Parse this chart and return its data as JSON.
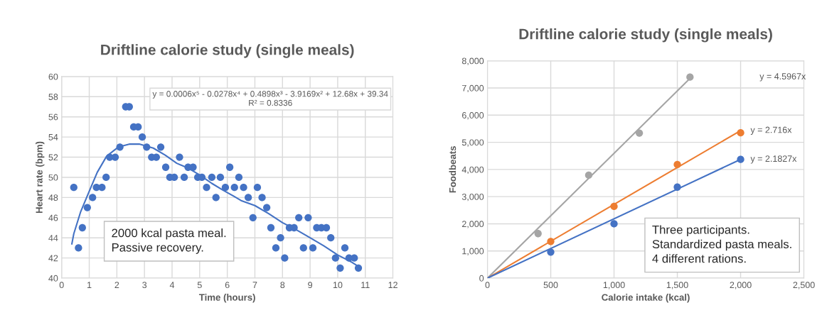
{
  "chart_data": [
    {
      "type": "scatter",
      "title": "Driftline calorie study (single meals)",
      "xlabel": "Time (hours)",
      "ylabel": "Heart rate (bpm)",
      "xlim": [
        0,
        12
      ],
      "xticks": [
        0,
        1,
        2,
        3,
        4,
        5,
        6,
        7,
        8,
        9,
        10,
        11,
        12
      ],
      "ylim": [
        40,
        60
      ],
      "yticks": [
        40,
        42,
        44,
        46,
        48,
        50,
        52,
        54,
        56,
        58,
        60
      ],
      "grid": true,
      "marker": "circle",
      "series": [
        {
          "type": "scatter",
          "color": "#4472c4",
          "x": [
            0.44,
            0.61,
            0.75,
            0.93,
            1.12,
            1.26,
            1.46,
            1.61,
            1.74,
            1.94,
            2.11,
            2.32,
            2.45,
            2.61,
            2.77,
            2.92,
            3.08,
            3.26,
            3.43,
            3.59,
            3.77,
            3.92,
            4.08,
            4.27,
            4.44,
            4.58,
            4.76,
            4.93,
            5.08,
            5.25,
            5.44,
            5.59,
            5.75,
            5.93,
            6.09,
            6.26,
            6.42,
            6.59,
            6.76,
            6.93,
            7.09,
            7.26,
            7.43,
            7.58,
            7.76,
            7.93,
            8.08,
            8.25,
            8.42,
            8.59,
            8.76,
            8.93,
            9.1,
            9.24,
            9.41,
            9.59,
            9.75,
            9.92,
            10.09,
            10.26,
            10.41,
            10.6,
            10.75
          ],
          "values": [
            49,
            43,
            45,
            47,
            48,
            49,
            49,
            50,
            52,
            52,
            53,
            57,
            57,
            55,
            55,
            54,
            53,
            52,
            52,
            53,
            51,
            50,
            50,
            52,
            50,
            51,
            51,
            50,
            50,
            49,
            50,
            48,
            50,
            49,
            51,
            49,
            50,
            49,
            48,
            46,
            49,
            48,
            47,
            45,
            43,
            44,
            42,
            45,
            45,
            46,
            43,
            46,
            43,
            45,
            45,
            45,
            44,
            42,
            41,
            43,
            42,
            42,
            41
          ]
        },
        {
          "type": "line",
          "color": "#4472c4",
          "marker": "none",
          "x": [
            0.37,
            0.44,
            0.69,
            0.95,
            1.29,
            1.63,
            2.05,
            2.47,
            2.81,
            3.32,
            3.75,
            4.17,
            4.59,
            5.02,
            5.44,
            5.86,
            6.25,
            6.5,
            7,
            7.5,
            8,
            8.5,
            9,
            9.5,
            10,
            10.5,
            10.84
          ],
          "values": [
            43.4,
            44.4,
            46.6,
            48.3,
            50.5,
            52.1,
            53.0,
            53.3,
            53.3,
            52.9,
            52.2,
            51.4,
            50.9,
            50.2,
            49.4,
            48.7,
            48.1,
            47.7,
            47.2,
            46.4,
            45.5,
            44.8,
            44.0,
            43.2,
            42.3,
            41.6,
            41.0
          ]
        }
      ],
      "annotations": [
        "y = 0.0006x⁵ - 0.0278x⁴ + 0.4898x³ - 3.9169x² + 12.68x + 39.34\nR² = 0.8336",
        "2000 kcal pasta meal.\nPassive recovery."
      ]
    },
    {
      "type": "scatter",
      "title": "Driftline calorie study (single meals)",
      "xlabel": "Calorie intake (kcal)",
      "ylabel": "Foodbeats",
      "xlim": [
        0,
        2500
      ],
      "xticks": [
        0,
        500,
        {
          "value": 1000,
          "label": "1,000"
        },
        {
          "value": 1500,
          "label": "1,500"
        },
        {
          "value": 2000,
          "label": "2,000"
        },
        {
          "value": 2500,
          "label": "2,500"
        }
      ],
      "ylim": [
        0,
        8000
      ],
      "yticks": [
        0,
        {
          "value": 1000,
          "label": "1,000"
        },
        {
          "value": 2000,
          "label": "2,000"
        },
        {
          "value": 3000,
          "label": "3,000"
        },
        {
          "value": 4000,
          "label": "4,000"
        },
        {
          "value": 5000,
          "label": "5,000"
        },
        {
          "value": 6000,
          "label": "6,000"
        },
        {
          "value": 7000,
          "label": "7,000"
        },
        {
          "value": 8000,
          "label": "8,000"
        }
      ],
      "grid": true,
      "marker": "circle",
      "series": [
        {
          "type": "line",
          "color": "#a5a5a5",
          "marker": "none",
          "x": [
            0,
            1600
          ],
          "values": [
            0,
            7350
          ]
        },
        {
          "type": "line",
          "color": "#ed7d31",
          "marker": "none",
          "x": [
            0,
            2000
          ],
          "values": [
            0,
            5430
          ]
        },
        {
          "type": "line",
          "color": "#4472c4",
          "marker": "none",
          "x": [
            0,
            2000
          ],
          "values": [
            0,
            4370
          ]
        },
        {
          "type": "scatter",
          "color": "#a5a5a5",
          "x": [
            400,
            800,
            1200,
            1600
          ],
          "values": [
            1640,
            3790,
            5340,
            7400
          ]
        },
        {
          "type": "scatter",
          "color": "#ed7d31",
          "x": [
            500,
            1000,
            1500,
            2000
          ],
          "values": [
            1350,
            2640,
            4180,
            5350
          ]
        },
        {
          "type": "scatter",
          "color": "#4472c4",
          "x": [
            500,
            1000,
            1500,
            2000
          ],
          "values": [
            960,
            2000,
            3350,
            4370
          ]
        }
      ],
      "annotations": [
        "y = 4.5967x",
        {
          "text": "y = 2.716x",
          "x": 2000,
          "y": 5430
        },
        {
          "text": "y = 2.1827x",
          "x": 2000,
          "y": 4370
        },
        "Three participants.\nStandardized pasta meals.\n4 different rations."
      ]
    }
  ]
}
